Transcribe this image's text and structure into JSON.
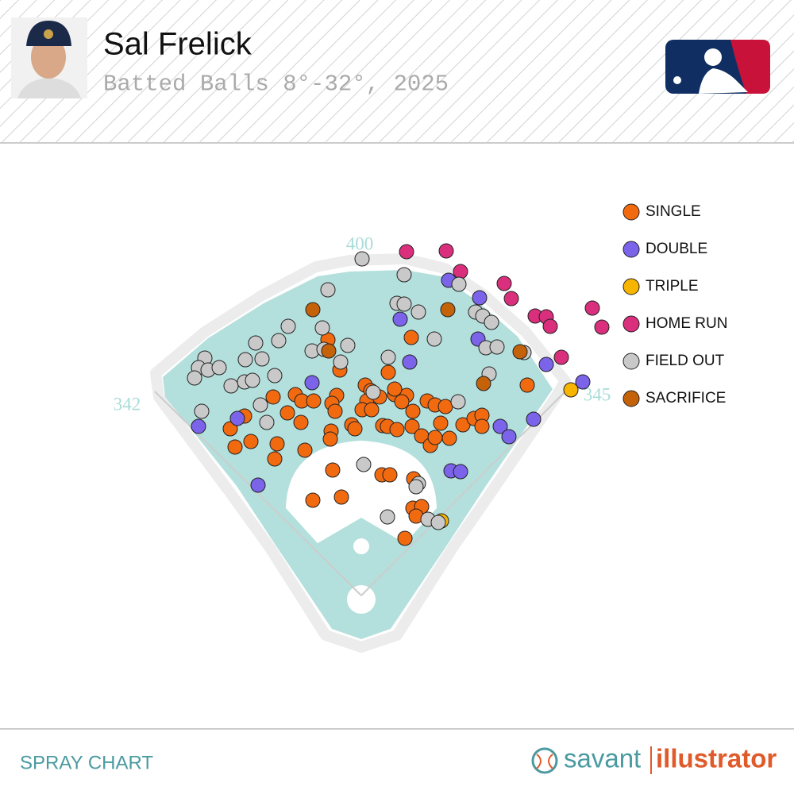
{
  "header": {
    "player": "Sal Frelick",
    "subtitle": "Batted Balls 8°-32°, 2025"
  },
  "footer": {
    "label": "SPRAY CHART",
    "brand": [
      "savant",
      "illustrator"
    ]
  },
  "chart_data": {
    "type": "scatter",
    "fences": {
      "left": 342,
      "center": 400,
      "right": 345
    },
    "series": [
      {
        "name": "SINGLE",
        "color": "#f26a10",
        "x": [
          63,
          -42,
          -27,
          34,
          5,
          -111,
          -83,
          -75,
          -31,
          -37,
          -60,
          12,
          42,
          57,
          7,
          23,
          42,
          1,
          13,
          51,
          83,
          93,
          65,
          106,
          -147,
          -76,
          -33,
          -93,
          -12,
          27,
          33,
          45,
          64,
          100,
          128,
          142,
          152,
          152,
          -165,
          -139,
          -159,
          -106,
          -71,
          -38,
          -39,
          -8,
          76,
          87,
          93,
          111,
          -109,
          -36,
          26,
          36,
          66,
          -61,
          -25,
          65,
          76,
          69,
          55,
          209
        ],
        "y": [
          325,
          322,
          284,
          281,
          265,
          250,
          253,
          245,
          252,
          242,
          245,
          258,
          253,
          252,
          245,
          250,
          260,
          234,
          234,
          244,
          245,
          240,
          232,
          238,
          226,
          218,
          232,
          230,
          215,
          214,
          213,
          209,
          213,
          217,
          215,
          223,
          227,
          213,
          210,
          194,
          187,
          191,
          183,
          207,
          197,
          210,
          201,
          189,
          199,
          198,
          172,
          158,
          152,
          152,
          147,
          120,
          124,
          110,
          112,
          100,
          72,
          265
        ]
      },
      {
        "name": "DOUBLE",
        "color": "#7b63ea",
        "x": [
          110,
          149,
          49,
          147,
          61,
          -62,
          -156,
          -205,
          175,
          186,
          217,
          233,
          279,
          113,
          125,
          -130
        ],
        "y": [
          397,
          375,
          348,
          323,
          294,
          268,
          223,
          213,
          213,
          200,
          222,
          291,
          269,
          157,
          156,
          139
        ]
      },
      {
        "name": "TRIPLE",
        "color": "#f7b500",
        "x": [
          264,
          101
        ],
        "y": [
          259,
          94
        ]
      },
      {
        "name": "HOME RUN",
        "color": "#d92f7c",
        "x": [
          57,
          107,
          125,
          180,
          189,
          219,
          233,
          238,
          291,
          303,
          252
        ],
        "y": [
          433,
          434,
          408,
          393,
          374,
          352,
          351,
          339,
          362,
          338,
          300
        ]
      },
      {
        "name": "FIELD OUT",
        "color": "#c9c9c9",
        "x": [
          1,
          54,
          123,
          -42,
          45,
          54,
          72,
          144,
          153,
          164,
          -92,
          -104,
          -49,
          -133,
          -17,
          -62,
          -47,
          -26,
          92,
          34,
          157,
          171,
          205,
          -197,
          -146,
          -125,
          -205,
          -193,
          -179,
          -210,
          -164,
          -147,
          -137,
          -109,
          161,
          15,
          -127,
          -119,
          -201,
          122,
          3,
          72,
          69,
          33,
          84,
          97
        ],
        "y": [
          424,
          404,
          392,
          385,
          368,
          367,
          357,
          357,
          352,
          344,
          339,
          321,
          337,
          318,
          315,
          308,
          310,
          294,
          323,
          300,
          312,
          313,
          306,
          299,
          297,
          298,
          287,
          284,
          287,
          274,
          264,
          269,
          271,
          277,
          279,
          256,
          240,
          218,
          232,
          244,
          165,
          141,
          137,
          99,
          96,
          92
        ]
      },
      {
        "name": "SACRIFICE",
        "color": "#c4620a",
        "x": [
          -61,
          109,
          -41,
          200,
          154
        ],
        "y": [
          360,
          360,
          308,
          307,
          267
        ]
      }
    ]
  }
}
